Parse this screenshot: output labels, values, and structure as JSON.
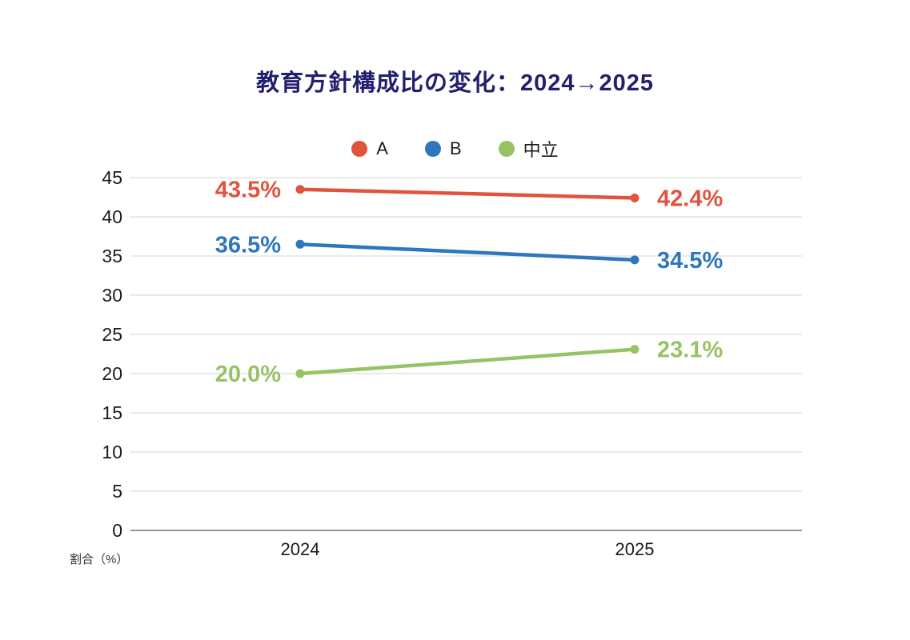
{
  "title": "教育方針構成比の変化：2024→2025",
  "axis_unit_label": "割合（%）",
  "colors": {
    "title": "#211f6e",
    "grid": "#dddddd",
    "axis": "#777777",
    "tick_text": "#1a1a1a"
  },
  "chart_data": {
    "type": "line",
    "title": "教育方針構成比の変化：2024→2025",
    "categories": [
      "2024",
      "2025"
    ],
    "series": [
      {
        "name": "A",
        "values": [
          43.5,
          42.4
        ],
        "labels": [
          "43.5%",
          "42.4%"
        ],
        "color": "#e0543e"
      },
      {
        "name": "B",
        "values": [
          36.5,
          34.5
        ],
        "labels": [
          "36.5%",
          "34.5%"
        ],
        "color": "#2e76bd"
      },
      {
        "name": "中立",
        "values": [
          20.0,
          23.1
        ],
        "labels": [
          "20.0%",
          "23.1%"
        ],
        "color": "#97c366"
      }
    ],
    "xlabel": "",
    "ylabel": "割合（%）",
    "ylim": [
      0,
      45
    ],
    "ytick_step": 5,
    "grid": true,
    "legend_position": "top"
  }
}
